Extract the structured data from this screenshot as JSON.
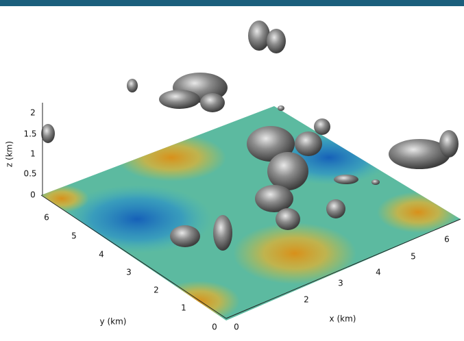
{
  "figure": {
    "z_axis": {
      "label": "z (km)",
      "ticks": [
        "0",
        "0.5",
        "1",
        "1.5",
        "2"
      ]
    },
    "y_axis": {
      "label": "y (km)",
      "ticks": [
        "0",
        "1",
        "2",
        "3",
        "4",
        "5",
        "6"
      ]
    },
    "x_axis": {
      "label": "x (km)",
      "ticks": [
        "0",
        "2",
        "3",
        "4",
        "5",
        "6"
      ]
    }
  }
}
